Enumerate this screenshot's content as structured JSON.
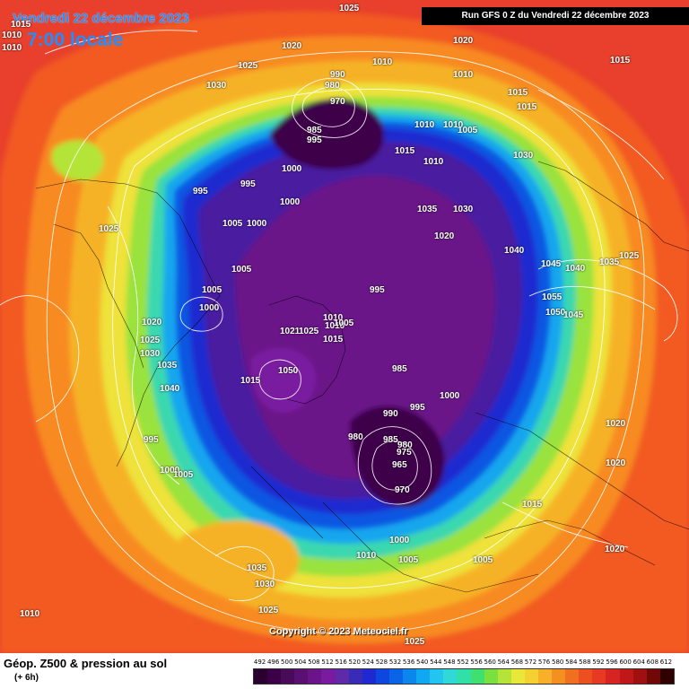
{
  "header": {
    "date": "Vendredi 22 décembre 2023",
    "time_label": "7:00 locale",
    "run_info": "Run GFS 0 Z du Vendredi 22 décembre 2023"
  },
  "copyright": "Copyright © 2023 Meteociel.fr",
  "footer": {
    "title": "Géop. Z500 & pression au sol",
    "subtitle": "(+ 6h)"
  },
  "legend": {
    "values": [
      "492",
      "496",
      "500",
      "504",
      "508",
      "512",
      "516",
      "520",
      "524",
      "528",
      "532",
      "536",
      "540",
      "544",
      "548",
      "552",
      "556",
      "560",
      "564",
      "568",
      "572",
      "576",
      "580",
      "584",
      "588",
      "592",
      "596",
      "600",
      "604",
      "608",
      "612"
    ],
    "colors": [
      "#2a0030",
      "#3c0048",
      "#4a0a5a",
      "#5a0f72",
      "#6a1488",
      "#7a1aa0",
      "#5e2aa8",
      "#3a2ab8",
      "#1e2ad0",
      "#0e46e0",
      "#0a64e8",
      "#0a86ee",
      "#10a8f0",
      "#22c4f0",
      "#30d8d8",
      "#30e0a8",
      "#40e070",
      "#7ae040",
      "#b4e438",
      "#e8e838",
      "#f4d030",
      "#f8b028",
      "#f49020",
      "#f07020",
      "#ec5020",
      "#e83a22",
      "#d82420",
      "#c01818",
      "#a01010",
      "#700808",
      "#300000"
    ]
  },
  "pressure_labels": [
    "1025",
    "1010",
    "1010",
    "1020",
    "1015",
    "1025",
    "1030",
    "1010",
    "1020",
    "1010",
    "1015",
    "1015",
    "1015",
    "990",
    "980",
    "970",
    "985",
    "995",
    "1010",
    "1010",
    "1005",
    "1030",
    "1015",
    "1010",
    "1000",
    "995",
    "1035",
    "1030",
    "995",
    "1000",
    "1005",
    "1000",
    "1020",
    "1040",
    "1025",
    "1045",
    "1040",
    "1035",
    "1025",
    "1005",
    "1005",
    "1000",
    "995",
    "1055",
    "1050",
    "1045",
    "1010",
    "1020",
    "1025",
    "1030",
    "1035",
    "1040",
    "1021",
    "1025",
    "1015",
    "1010",
    "1005",
    "1015",
    "1050",
    "985",
    "1000",
    "990",
    "995",
    "980",
    "985",
    "980",
    "975",
    "965",
    "970",
    "1020",
    "995",
    "1000",
    "1005",
    "1020",
    "1035",
    "1030",
    "1015",
    "1010",
    "1000",
    "1005",
    "1005",
    "1020",
    "1025",
    "1010",
    "1025"
  ],
  "colors": {
    "background": "#e8362a",
    "low_core": "#5a0f72",
    "contour": "#ffffff",
    "header_text": "#1e90ff"
  }
}
